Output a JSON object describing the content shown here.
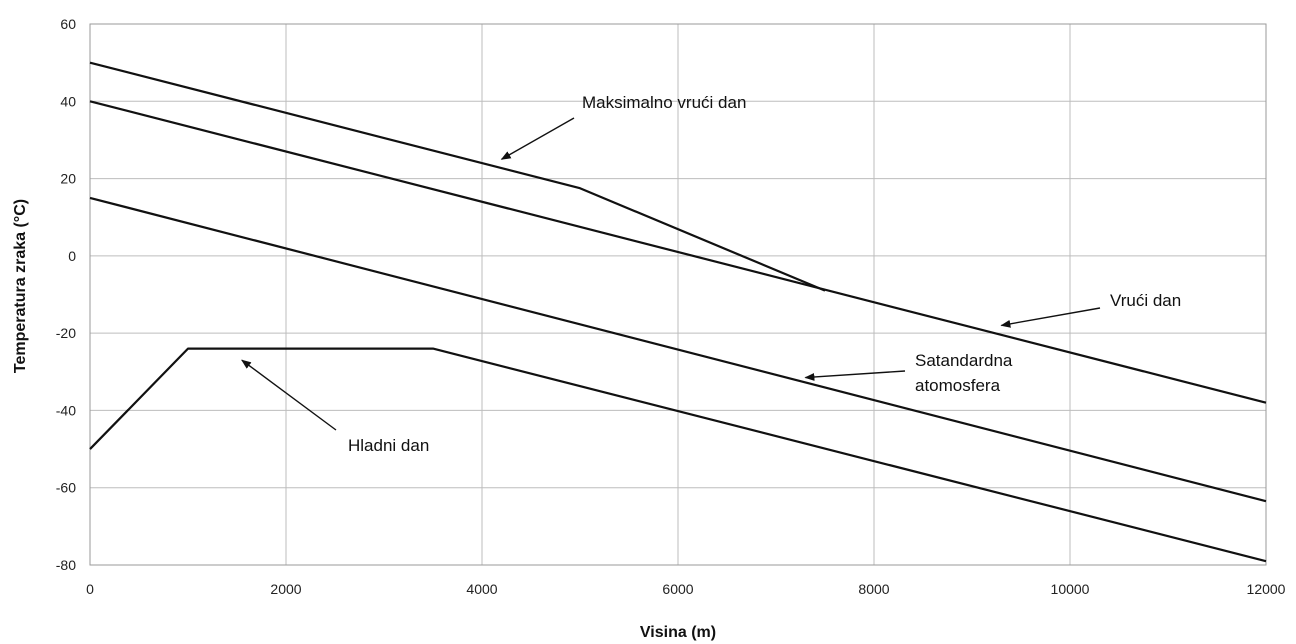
{
  "chart_data": {
    "type": "line",
    "xlabel": "Visina (m)",
    "ylabel": "Temperatura zraka (°C)",
    "xlim": [
      0,
      12000
    ],
    "ylim": [
      -80,
      60
    ],
    "xticks": [
      0,
      2000,
      4000,
      6000,
      8000,
      10000,
      12000
    ],
    "yticks": [
      -80,
      -60,
      -40,
      -20,
      0,
      20,
      40,
      60
    ],
    "grid": true,
    "series": [
      {
        "x": [
          0,
          5000,
          7500
        ],
        "y": [
          50,
          17.5,
          -9
        ]
      },
      {
        "x": [
          0,
          12000
        ],
        "y": [
          40,
          -38
        ]
      },
      {
        "x": [
          0,
          12000
        ],
        "y": [
          15,
          -63.5
        ]
      },
      {
        "x": [
          0,
          1000,
          3500,
          12000
        ],
        "y": [
          -50,
          -24,
          -24,
          -79
        ]
      }
    ],
    "annotations": [
      {
        "text": "Maksimalno vrući dan",
        "arrow_to": [
          4200,
          25
        ]
      },
      {
        "text": "Vrući dan",
        "arrow_to": [
          9300,
          -18
        ]
      },
      {
        "text": "Satandardna atomosfera",
        "arrow_to": [
          7300,
          -31.5
        ]
      },
      {
        "text": "Hladni dan",
        "arrow_to": [
          1550,
          -27
        ]
      }
    ]
  }
}
